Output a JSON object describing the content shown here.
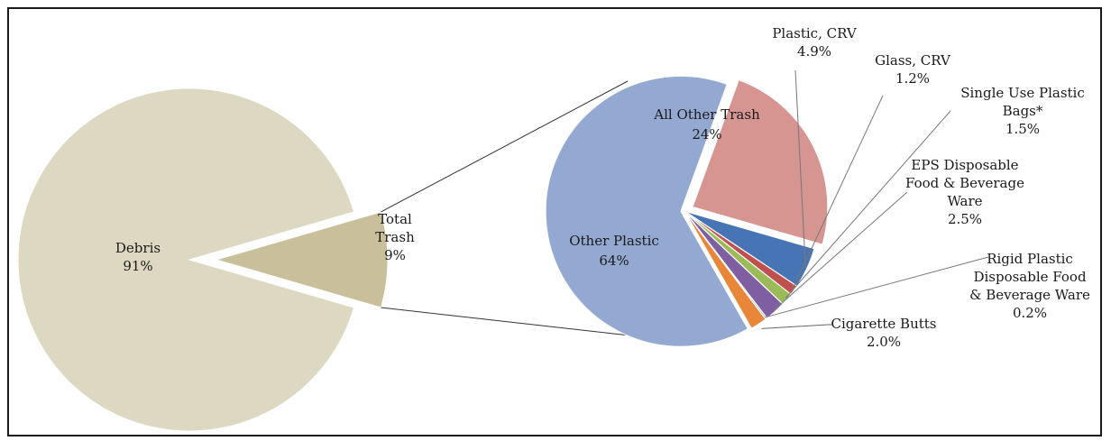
{
  "chart_data": [
    {
      "type": "pie",
      "title": "",
      "slices": [
        {
          "label": "Debris",
          "value_label": "91%",
          "value": 91,
          "color": "#dcd8c2"
        },
        {
          "label": "Total Trash",
          "value_label": "9%",
          "value": 9,
          "color": "#c9c09b"
        }
      ]
    },
    {
      "type": "pie",
      "title": "",
      "slices": [
        {
          "label": "All Other Trash",
          "value_label": "24%",
          "value": 24,
          "color": "#d79591"
        },
        {
          "label": "Plastic, CRV",
          "value_label": "4.9%",
          "value": 4.9,
          "color": "#4674b4"
        },
        {
          "label": "Glass, CRV",
          "value_label": "1.2%",
          "value": 1.2,
          "color": "#c0504d"
        },
        {
          "label": "Single Use Plastic Bags*",
          "value_label": "1.5%",
          "value": 1.5,
          "color": "#9bbb59"
        },
        {
          "label": "EPS Disposable Food & Beverage Ware",
          "value_label": "2.5%",
          "value": 2.5,
          "color": "#7f5fa2"
        },
        {
          "label": "Rigid Plastic Disposable Food & Beverage Ware",
          "value_label": "0.2%",
          "value": 0.2,
          "color": "#4bacc6"
        },
        {
          "label": "Cigarette Butts",
          "value_label": "2.0%",
          "value": 2.0,
          "color": "#e8873a"
        },
        {
          "label": "Other Plastic",
          "value_label": "64%",
          "value": 64,
          "color": "#94a9d1"
        }
      ]
    }
  ]
}
